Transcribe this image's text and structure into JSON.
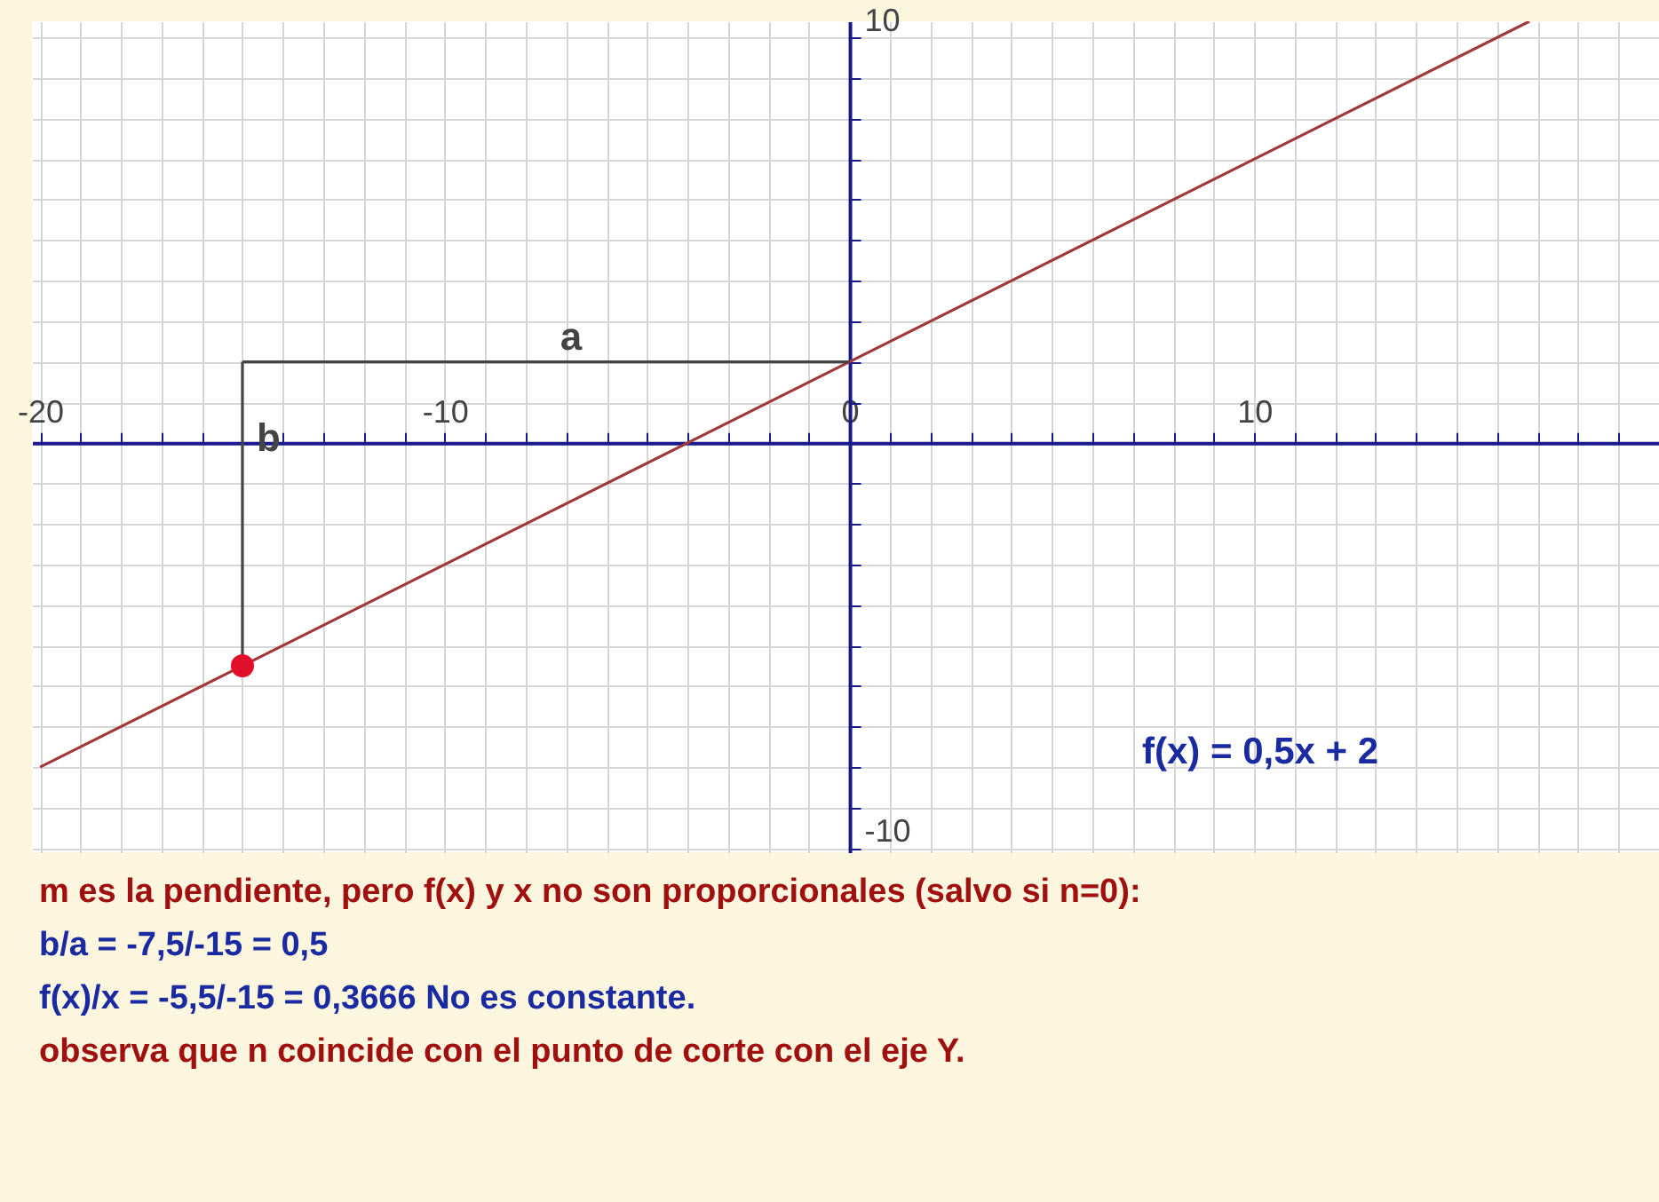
{
  "chart_data": {
    "type": "line",
    "series": [
      {
        "name": "f(x) = 0,5x + 2",
        "color": "#a03a3a",
        "x": [
          -20,
          16.8
        ],
        "values": [
          -8,
          10.4
        ]
      },
      {
        "type": "line",
        "color": "#444444",
        "x": [
          -15,
          0
        ],
        "values": [
          2,
          2
        ]
      },
      {
        "type": "line",
        "color": "#444444",
        "x": [
          -15,
          -15
        ],
        "values": [
          2,
          -5.5
        ]
      },
      {
        "type": "scatter",
        "marker": "circle",
        "color": "#e0102a",
        "x": [
          -15
        ],
        "values": [
          -5.5
        ]
      }
    ],
    "xlim": [
      -20.2,
      20
    ],
    "ylim": [
      -10.1,
      10.4
    ],
    "xticks": [
      {
        "value": -20,
        "label": "-20"
      },
      {
        "value": -19,
        "label": null
      },
      {
        "value": -18,
        "label": null
      },
      {
        "value": -17,
        "label": null
      },
      {
        "value": -16,
        "label": null
      },
      {
        "value": -15,
        "label": null
      },
      {
        "value": -14,
        "label": null
      },
      {
        "value": -13,
        "label": null
      },
      {
        "value": -12,
        "label": null
      },
      {
        "value": -11,
        "label": null
      },
      {
        "value": -10,
        "label": "-10"
      },
      {
        "value": -9,
        "label": null
      },
      {
        "value": -8,
        "label": null
      },
      {
        "value": -7,
        "label": null
      },
      {
        "value": -6,
        "label": null
      },
      {
        "value": -5,
        "label": null
      },
      {
        "value": -4,
        "label": null
      },
      {
        "value": -3,
        "label": null
      },
      {
        "value": -2,
        "label": null
      },
      {
        "value": -1,
        "label": null
      },
      {
        "value": 0,
        "label": "0"
      },
      {
        "value": 1,
        "label": null
      },
      {
        "value": 2,
        "label": null
      },
      {
        "value": 3,
        "label": null
      },
      {
        "value": 4,
        "label": null
      },
      {
        "value": 5,
        "label": null
      },
      {
        "value": 6,
        "label": null
      },
      {
        "value": 7,
        "label": null
      },
      {
        "value": 8,
        "label": null
      },
      {
        "value": 9,
        "label": null
      },
      {
        "value": 10,
        "label": "10"
      },
      {
        "value": 11,
        "label": null
      },
      {
        "value": 12,
        "label": null
      },
      {
        "value": 13,
        "label": null
      },
      {
        "value": 14,
        "label": null
      },
      {
        "value": 15,
        "label": null
      },
      {
        "value": 16,
        "label": null
      },
      {
        "value": 17,
        "label": null
      },
      {
        "value": 18,
        "label": null
      },
      {
        "value": 19,
        "label": null
      }
    ],
    "yticks": [
      {
        "value": -10,
        "label": "-10"
      },
      {
        "value": -9,
        "label": null
      },
      {
        "value": -8,
        "label": null
      },
      {
        "value": -7,
        "label": null
      },
      {
        "value": -6,
        "label": null
      },
      {
        "value": -5,
        "label": null
      },
      {
        "value": -4,
        "label": null
      },
      {
        "value": -3,
        "label": null
      },
      {
        "value": -2,
        "label": null
      },
      {
        "value": -1,
        "label": null
      },
      {
        "value": 1,
        "label": null
      },
      {
        "value": 2,
        "label": null
      },
      {
        "value": 3,
        "label": null
      },
      {
        "value": 4,
        "label": null
      },
      {
        "value": 5,
        "label": null
      },
      {
        "value": 6,
        "label": null
      },
      {
        "value": 7,
        "label": null
      },
      {
        "value": 8,
        "label": null
      },
      {
        "value": 9,
        "label": null
      },
      {
        "value": 10,
        "label": "10"
      }
    ],
    "grid": true,
    "legend": false,
    "marker": "none",
    "line_style": "solid",
    "annotations": [
      {
        "text": "a",
        "x": -7.5,
        "y": 2
      },
      {
        "text": "b",
        "x": -15,
        "y": -0.5
      },
      "m es la pendiente, pero  f(x) y x no son proporcionales (salvo si n=0):",
      "b/a = -7,5/-15 = 0,5",
      "f(x)/x = -5,5/-15 = 0,3666  No es constante.",
      "observa que n coincide  con el punto de corte con el eje Y."
    ]
  }
}
